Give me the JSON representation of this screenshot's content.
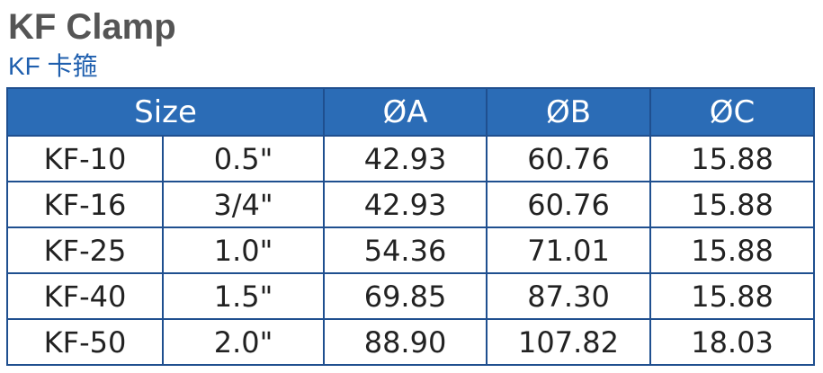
{
  "title": "KF Clamp",
  "subtitle": "KF 卡箍",
  "colors": {
    "title": "#555555",
    "subtitle": "#1f5fae",
    "header_bg": "#2b6cb6",
    "border": "#1f4f8f"
  },
  "table": {
    "headers": [
      "Size",
      "ØA",
      "ØB",
      "ØC"
    ],
    "rows": [
      [
        "KF-10",
        "0.5\"",
        "42.93",
        "60.76",
        "15.88"
      ],
      [
        "KF-16",
        "3/4\"",
        "42.93",
        "60.76",
        "15.88"
      ],
      [
        "KF-25",
        "1.0\"",
        "54.36",
        "71.01",
        "15.88"
      ],
      [
        "KF-40",
        "1.5\"",
        "69.85",
        "87.30",
        "15.88"
      ],
      [
        "KF-50",
        "2.0\"",
        "88.90",
        "107.82",
        "18.03"
      ]
    ]
  }
}
